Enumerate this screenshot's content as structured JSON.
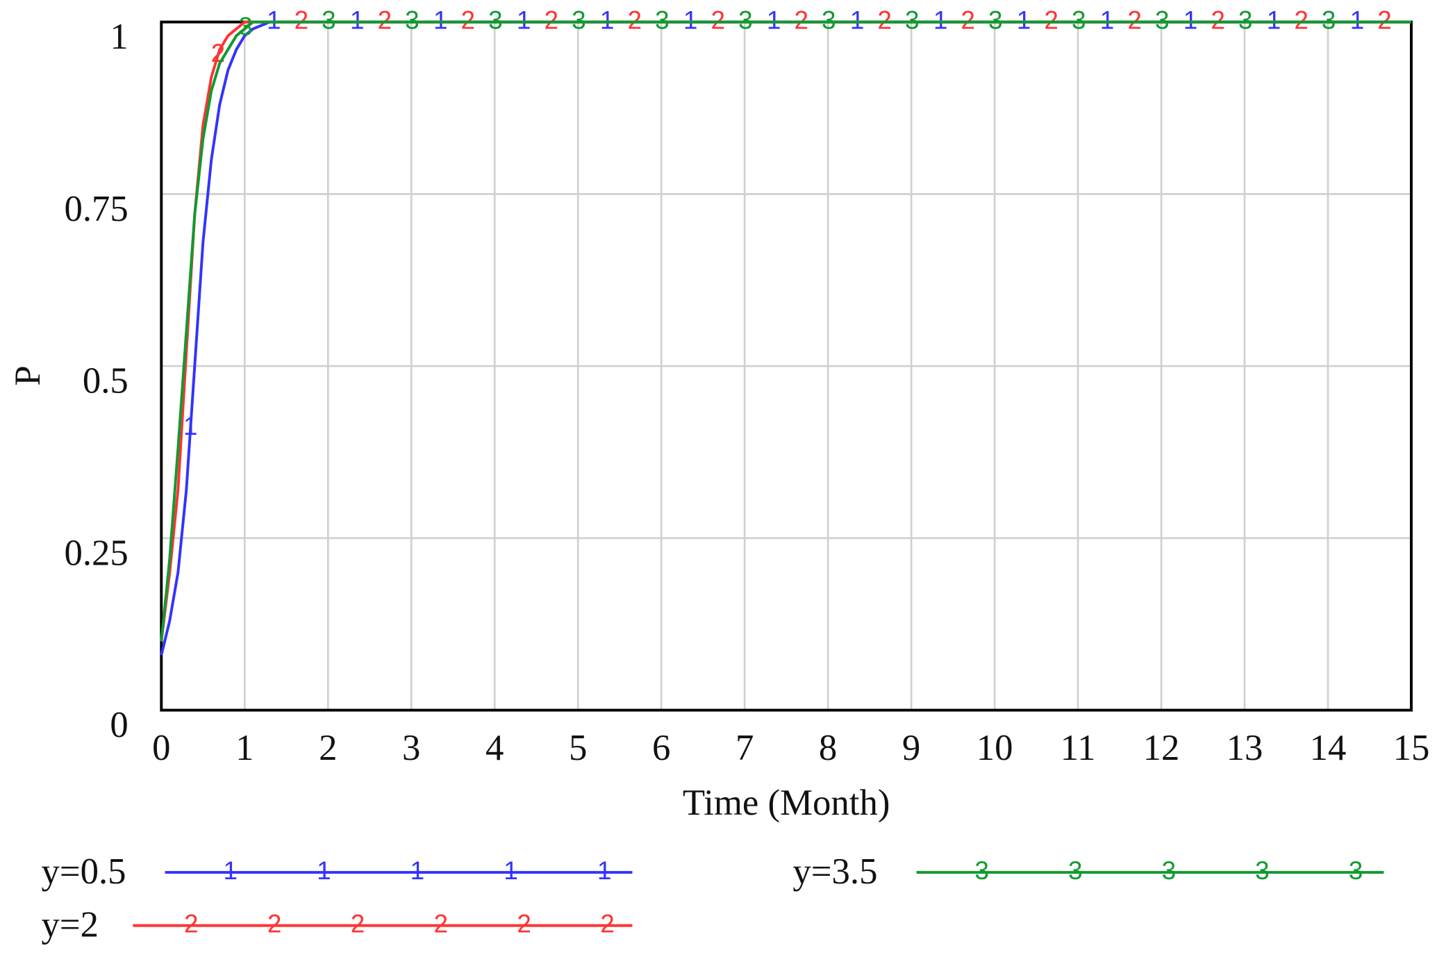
{
  "chart_data": {
    "type": "line",
    "xlabel": "Time (Month)",
    "ylabel": "P",
    "x": [
      0,
      0.1,
      0.2,
      0.3,
      0.4,
      0.5,
      0.6,
      0.7,
      0.8,
      0.9,
      1,
      1.1,
      1.2,
      1.3,
      1.4,
      1.5,
      2,
      3,
      4,
      5,
      6,
      7,
      8,
      9,
      10,
      11,
      12,
      13,
      14,
      15
    ],
    "series": [
      {
        "name": "y=0.5",
        "marker": "1",
        "color": "#3333ff",
        "values": [
          0.08,
          0.13,
          0.2,
          0.32,
          0.5,
          0.68,
          0.8,
          0.88,
          0.93,
          0.96,
          0.98,
          0.99,
          0.995,
          1,
          1,
          1,
          1,
          1,
          1,
          1,
          1,
          1,
          1,
          1,
          1,
          1,
          1,
          1,
          1,
          1
        ]
      },
      {
        "name": "y=2",
        "marker": "2",
        "color": "#ff3333",
        "values": [
          0.1,
          0.2,
          0.32,
          0.52,
          0.72,
          0.85,
          0.92,
          0.96,
          0.98,
          0.99,
          1,
          1,
          1,
          1,
          1,
          1,
          1,
          1,
          1,
          1,
          1,
          1,
          1,
          1,
          1,
          1,
          1,
          1,
          1,
          1
        ]
      },
      {
        "name": "y=3.5",
        "marker": "3",
        "color": "#109a30",
        "values": [
          0.1,
          0.22,
          0.38,
          0.55,
          0.72,
          0.83,
          0.9,
          0.94,
          0.96,
          0.98,
          0.99,
          1,
          1,
          1,
          1,
          1,
          1,
          1,
          1,
          1,
          1,
          1,
          1,
          1,
          1,
          1,
          1,
          1,
          1,
          1
        ]
      }
    ],
    "xlim": [
      0,
      15
    ],
    "xticks": [
      0,
      1,
      2,
      3,
      4,
      5,
      6,
      7,
      8,
      9,
      10,
      11,
      12,
      13,
      14,
      15
    ],
    "ylim": [
      0,
      1
    ],
    "yticks": [
      0,
      0.25,
      0.5,
      0.75,
      1
    ],
    "grid": true
  }
}
